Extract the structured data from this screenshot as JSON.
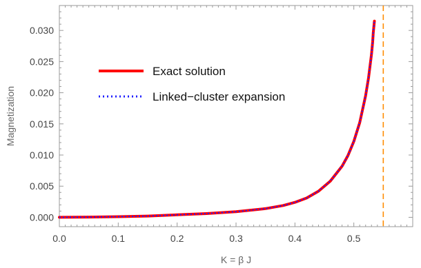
{
  "chart_data": {
    "type": "line",
    "title": "",
    "xlabel": "K = β J",
    "ylabel": "Magnetization",
    "xlim": [
      0,
      0.6
    ],
    "ylim": [
      -0.0015,
      0.034
    ],
    "xticks": [
      0.0,
      0.1,
      0.2,
      0.3,
      0.4,
      0.5
    ],
    "yticks": [
      0.0,
      0.005,
      0.01,
      0.015,
      0.02,
      0.025,
      0.03
    ],
    "xtick_labels": [
      "0.0",
      "0.1",
      "0.2",
      "0.3",
      "0.4",
      "0.5"
    ],
    "ytick_labels": [
      "0.000",
      "0.005",
      "0.010",
      "0.015",
      "0.020",
      "0.025",
      "0.030"
    ],
    "grid": false,
    "legend_position": "upper-left",
    "series": [
      {
        "name": "Exact solution",
        "color": "#ff0000",
        "style": "solid",
        "x": [
          0.0,
          0.05,
          0.1,
          0.15,
          0.2,
          0.25,
          0.3,
          0.35,
          0.38,
          0.4,
          0.42,
          0.44,
          0.46,
          0.48,
          0.49,
          0.5,
          0.51,
          0.52,
          0.525,
          0.53,
          0.532,
          0.533,
          0.535
        ],
        "y": [
          0.0,
          4e-05,
          0.0001,
          0.0002,
          0.0004,
          0.0006,
          0.0009,
          0.0014,
          0.0019,
          0.0024,
          0.0031,
          0.0042,
          0.0058,
          0.0082,
          0.0099,
          0.0122,
          0.0152,
          0.0195,
          0.0224,
          0.0262,
          0.0282,
          0.0296,
          0.0315
        ]
      },
      {
        "name": "Linked−cluster expansion",
        "color": "#1f1fff",
        "style": "dotted",
        "x": [
          0.0,
          0.05,
          0.1,
          0.15,
          0.2,
          0.25,
          0.3,
          0.35,
          0.38,
          0.4,
          0.42,
          0.44,
          0.46,
          0.48,
          0.49,
          0.5,
          0.51,
          0.52,
          0.525,
          0.53,
          0.532,
          0.533,
          0.535
        ],
        "y": [
          0.0,
          4e-05,
          0.0001,
          0.0002,
          0.0004,
          0.0006,
          0.0009,
          0.0014,
          0.0019,
          0.0024,
          0.0031,
          0.0042,
          0.0058,
          0.0082,
          0.0099,
          0.0122,
          0.0152,
          0.0195,
          0.0224,
          0.0262,
          0.0282,
          0.0296,
          0.0315
        ]
      }
    ],
    "vline": {
      "x": 0.55,
      "color": "#ff8c00",
      "style": "dashed"
    }
  }
}
